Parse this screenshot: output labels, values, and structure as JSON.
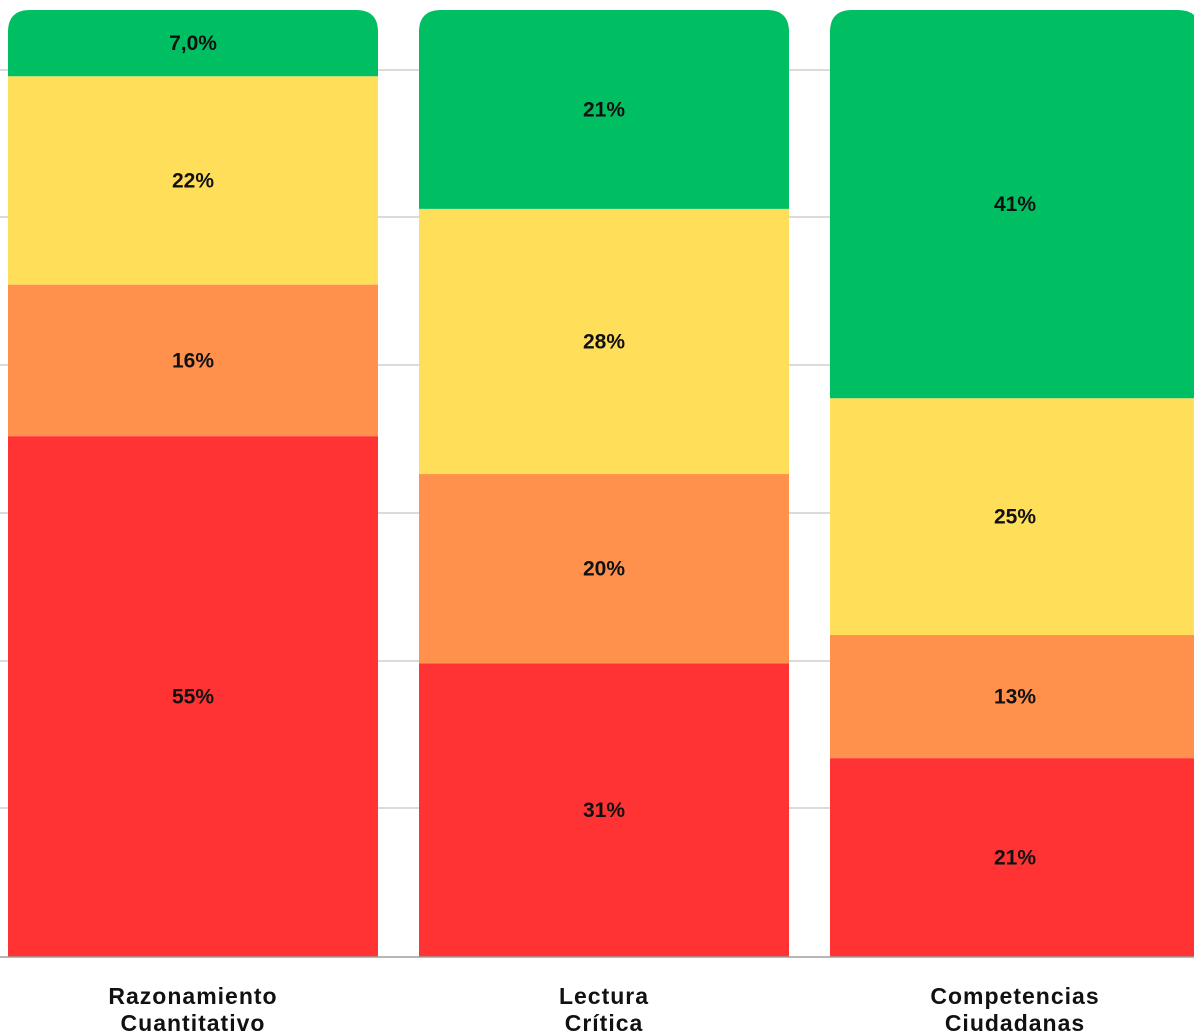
{
  "chart_data": {
    "type": "bar",
    "stacked": true,
    "title": "",
    "xlabel": "",
    "ylabel": "",
    "ylim": [
      0,
      100
    ],
    "grid": true,
    "legend": "none",
    "categories": [
      [
        "Razonamiento",
        "Cuantitativo"
      ],
      [
        "Lectura",
        "Crítica"
      ],
      [
        "Competencias",
        "Ciudadanas"
      ]
    ],
    "series": [
      {
        "color": "#FF3333",
        "values": [
          55,
          31,
          21
        ],
        "labels": [
          "55%",
          "31%",
          "21%"
        ]
      },
      {
        "color": "#FF914D",
        "values": [
          16,
          20,
          13
        ],
        "labels": [
          "16%",
          "20%",
          "13%"
        ]
      },
      {
        "color": "#FFDE59",
        "values": [
          22,
          28,
          25
        ],
        "labels": [
          "22%",
          "28%",
          "25%"
        ]
      },
      {
        "color": "#00BF63",
        "values": [
          7,
          21,
          41
        ],
        "labels": [
          "7,0%",
          "21%",
          "41%"
        ]
      }
    ]
  }
}
